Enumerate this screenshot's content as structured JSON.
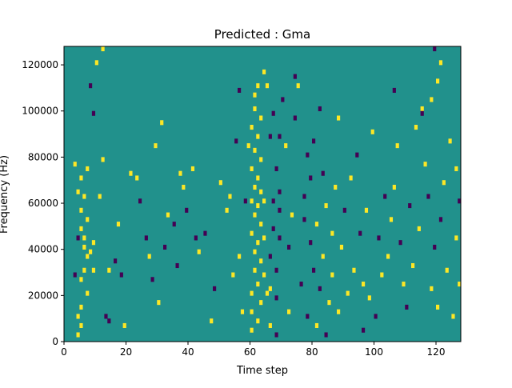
{
  "chart_data": {
    "type": "heatmap",
    "title": "Predicted : Gma",
    "xlabel": "Time step",
    "ylabel": "Frequency (Hz)",
    "xlim": [
      0,
      128
    ],
    "ylim": [
      0,
      128000
    ],
    "x_ticks": [
      0,
      20,
      40,
      60,
      80,
      100,
      120
    ],
    "y_ticks": [
      0,
      20000,
      40000,
      60000,
      80000,
      100000,
      120000
    ],
    "x_tick_labels": [
      "0",
      "20",
      "40",
      "60",
      "80",
      "100",
      "120"
    ],
    "y_tick_labels": [
      "0",
      "20000",
      "40000",
      "60000",
      "80000",
      "100000",
      "120000"
    ],
    "n_time_steps": 128,
    "n_freq_bins": 64,
    "colormap": "viridis",
    "colors": {
      "background": "#21918c",
      "high": "#fde725",
      "low": "#440154"
    },
    "grid": false,
    "legend": "none",
    "value_levels": {
      "low": -1,
      "background": 0,
      "high": 1
    },
    "cells": [
      [
        4,
        2000,
        1
      ],
      [
        5,
        6000,
        1
      ],
      [
        5,
        14000,
        1
      ],
      [
        5,
        26000,
        1
      ],
      [
        6,
        40000,
        1
      ],
      [
        7,
        52000,
        1
      ],
      [
        6,
        30000,
        1
      ],
      [
        7,
        20000,
        1
      ],
      [
        5,
        56000,
        1
      ],
      [
        6,
        62000,
        1
      ],
      [
        5,
        70000,
        1
      ],
      [
        7,
        74000,
        1
      ],
      [
        4,
        64000,
        1
      ],
      [
        3,
        76000,
        1
      ],
      [
        5,
        48000,
        1
      ],
      [
        7,
        36000,
        1
      ],
      [
        4,
        10000,
        1
      ],
      [
        6,
        44000,
        1
      ],
      [
        3,
        28000,
        -1
      ],
      [
        4,
        44000,
        -1
      ],
      [
        9,
        30000,
        1
      ],
      [
        8,
        38000,
        1
      ],
      [
        9,
        42000,
        1
      ],
      [
        11,
        62000,
        1
      ],
      [
        12,
        78000,
        1
      ],
      [
        8,
        110000,
        -1
      ],
      [
        9,
        98000,
        -1
      ],
      [
        10,
        120000,
        1
      ],
      [
        12,
        126000,
        1
      ],
      [
        13,
        10000,
        -1
      ],
      [
        14,
        8000,
        -1
      ],
      [
        14,
        30000,
        1
      ],
      [
        16,
        34000,
        -1
      ],
      [
        17,
        50000,
        1
      ],
      [
        18,
        28000,
        -1
      ],
      [
        19,
        6000,
        1
      ],
      [
        21,
        72000,
        1
      ],
      [
        23,
        70000,
        1
      ],
      [
        24,
        60000,
        -1
      ],
      [
        26,
        44000,
        -1
      ],
      [
        27,
        36000,
        1
      ],
      [
        28,
        26000,
        -1
      ],
      [
        29,
        84000,
        1
      ],
      [
        31,
        94000,
        1
      ],
      [
        30,
        16000,
        1
      ],
      [
        32,
        40000,
        -1
      ],
      [
        33,
        54000,
        1
      ],
      [
        35,
        50000,
        -1
      ],
      [
        36,
        32000,
        -1
      ],
      [
        37,
        72000,
        1
      ],
      [
        38,
        66000,
        1
      ],
      [
        39,
        56000,
        -1
      ],
      [
        41,
        74000,
        1
      ],
      [
        42,
        44000,
        -1
      ],
      [
        43,
        38000,
        1
      ],
      [
        45,
        46000,
        -1
      ],
      [
        47,
        8000,
        1
      ],
      [
        48,
        22000,
        -1
      ],
      [
        50,
        68000,
        1
      ],
      [
        52,
        56000,
        1
      ],
      [
        53,
        62000,
        1
      ],
      [
        54,
        28000,
        1
      ],
      [
        56,
        36000,
        1
      ],
      [
        57,
        12000,
        1
      ],
      [
        58,
        60000,
        -1
      ],
      [
        59,
        84000,
        1
      ],
      [
        55,
        86000,
        -1
      ],
      [
        56,
        108000,
        -1
      ],
      [
        60,
        4000,
        1
      ],
      [
        60,
        12000,
        1
      ],
      [
        60,
        20000,
        1
      ],
      [
        61,
        30000,
        1
      ],
      [
        61,
        38000,
        1
      ],
      [
        60,
        46000,
        1
      ],
      [
        61,
        54000,
        1
      ],
      [
        60,
        60000,
        1
      ],
      [
        61,
        66000,
        1
      ],
      [
        60,
        74000,
        1
      ],
      [
        61,
        82000,
        1
      ],
      [
        60,
        92000,
        1
      ],
      [
        61,
        100000,
        1
      ],
      [
        61,
        106000,
        1
      ],
      [
        62,
        8000,
        1
      ],
      [
        63,
        16000,
        1
      ],
      [
        62,
        24000,
        1
      ],
      [
        63,
        34000,
        1
      ],
      [
        62,
        42000,
        1
      ],
      [
        63,
        50000,
        1
      ],
      [
        62,
        58000,
        1
      ],
      [
        63,
        64000,
        1
      ],
      [
        62,
        70000,
        1
      ],
      [
        63,
        78000,
        1
      ],
      [
        62,
        88000,
        1
      ],
      [
        63,
        96000,
        1
      ],
      [
        62,
        110000,
        1
      ],
      [
        64,
        116000,
        1
      ],
      [
        65,
        110000,
        1
      ],
      [
        64,
        28000,
        1
      ],
      [
        64,
        44000,
        1
      ],
      [
        64,
        60000,
        1
      ],
      [
        65,
        20000,
        1
      ],
      [
        66,
        6000,
        1
      ],
      [
        66,
        22000,
        1
      ],
      [
        66,
        36000,
        -1
      ],
      [
        67,
        48000,
        -1
      ],
      [
        67,
        60000,
        -1
      ],
      [
        66,
        88000,
        -1
      ],
      [
        67,
        98000,
        -1
      ],
      [
        68,
        2000,
        -1
      ],
      [
        68,
        18000,
        -1
      ],
      [
        68,
        30000,
        -1
      ],
      [
        69,
        44000,
        -1
      ],
      [
        69,
        56000,
        -1
      ],
      [
        69,
        64000,
        -1
      ],
      [
        68,
        74000,
        -1
      ],
      [
        69,
        88000,
        -1
      ],
      [
        70,
        104000,
        -1
      ],
      [
        71,
        84000,
        1
      ],
      [
        72,
        12000,
        1
      ],
      [
        72,
        40000,
        -1
      ],
      [
        73,
        54000,
        1
      ],
      [
        74,
        96000,
        -1
      ],
      [
        74,
        114000,
        -1
      ],
      [
        75,
        110000,
        1
      ],
      [
        76,
        24000,
        -1
      ],
      [
        77,
        52000,
        -1
      ],
      [
        77,
        62000,
        -1
      ],
      [
        78,
        80000,
        -1
      ],
      [
        78,
        10000,
        -1
      ],
      [
        79,
        42000,
        -1
      ],
      [
        79,
        70000,
        -1
      ],
      [
        80,
        30000,
        -1
      ],
      [
        80,
        86000,
        -1
      ],
      [
        81,
        50000,
        1
      ],
      [
        81,
        6000,
        1
      ],
      [
        82,
        22000,
        -1
      ],
      [
        82,
        100000,
        -1
      ],
      [
        83,
        36000,
        1
      ],
      [
        83,
        72000,
        -1
      ],
      [
        84,
        2000,
        -1
      ],
      [
        84,
        58000,
        1
      ],
      [
        85,
        16000,
        1
      ],
      [
        86,
        28000,
        1
      ],
      [
        86,
        46000,
        1
      ],
      [
        87,
        66000,
        1
      ],
      [
        88,
        96000,
        1
      ],
      [
        88,
        12000,
        1
      ],
      [
        89,
        40000,
        1
      ],
      [
        90,
        56000,
        -1
      ],
      [
        91,
        20000,
        1
      ],
      [
        92,
        70000,
        1
      ],
      [
        93,
        30000,
        1
      ],
      [
        94,
        80000,
        -1
      ],
      [
        95,
        46000,
        -1
      ],
      [
        96,
        4000,
        -1
      ],
      [
        96,
        24000,
        1
      ],
      [
        97,
        56000,
        1
      ],
      [
        98,
        18000,
        1
      ],
      [
        99,
        90000,
        1
      ],
      [
        100,
        10000,
        -1
      ],
      [
        101,
        44000,
        -1
      ],
      [
        102,
        28000,
        1
      ],
      [
        103,
        62000,
        -1
      ],
      [
        104,
        36000,
        1
      ],
      [
        105,
        52000,
        1
      ],
      [
        106,
        66000,
        1
      ],
      [
        106,
        108000,
        -1
      ],
      [
        107,
        84000,
        1
      ],
      [
        108,
        42000,
        -1
      ],
      [
        109,
        24000,
        1
      ],
      [
        110,
        14000,
        -1
      ],
      [
        111,
        58000,
        -1
      ],
      [
        112,
        32000,
        1
      ],
      [
        113,
        92000,
        1
      ],
      [
        114,
        48000,
        1
      ],
      [
        115,
        100000,
        1
      ],
      [
        116,
        76000,
        1
      ],
      [
        117,
        62000,
        -1
      ],
      [
        118,
        22000,
        1
      ],
      [
        119,
        40000,
        -1
      ],
      [
        120,
        14000,
        1
      ],
      [
        121,
        52000,
        -1
      ],
      [
        122,
        68000,
        1
      ],
      [
        123,
        30000,
        1
      ],
      [
        124,
        86000,
        1
      ],
      [
        125,
        10000,
        1
      ],
      [
        126,
        44000,
        1
      ],
      [
        127,
        60000,
        -1
      ],
      [
        127,
        24000,
        1
      ],
      [
        126,
        74000,
        1
      ],
      [
        121,
        120000,
        1
      ],
      [
        120,
        112000,
        1
      ],
      [
        119,
        126000,
        -1
      ],
      [
        118,
        104000,
        1
      ],
      [
        115,
        98000,
        -1
      ]
    ]
  }
}
